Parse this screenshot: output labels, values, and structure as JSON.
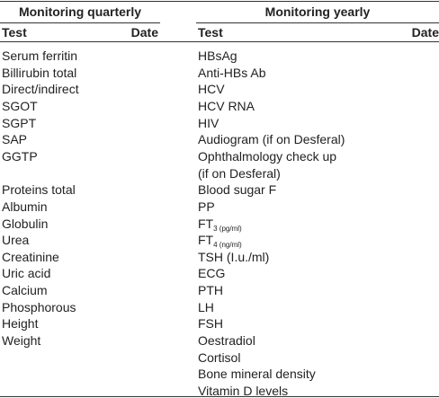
{
  "quarterly": {
    "title": "Monitoring quarterly",
    "headers": [
      "Test",
      "Date"
    ],
    "items": [
      "Serum ferritin",
      "Billirubin total",
      "Direct/indirect",
      "SGOT",
      "SGPT",
      "SAP",
      "GGTP",
      "Proteins total",
      "Albumin",
      "Globulin",
      "Urea",
      "Creatinine",
      "Uric acid",
      "Calcium",
      "Phosphorous",
      "Height",
      "Weight"
    ]
  },
  "yearly": {
    "title": "Monitoring yearly",
    "headers": [
      "Test",
      "Date"
    ],
    "items": [
      "HBsAg",
      "Anti-HBs Ab",
      "HCV",
      "HCV RNA",
      "HIV",
      "Audiogram (if on Desferal)",
      [
        "Ophthalmology check up",
        "(if on Desferal)"
      ],
      "Blood sugar F",
      "PP",
      {
        "text": "FT",
        "sub": "3 (pg/ml)"
      },
      {
        "text": "FT",
        "sub": "4 (ng/ml)"
      },
      "TSH (I.u./ml)",
      "ECG",
      "PTH",
      "LH",
      "FSH",
      "Oestradiol",
      "Cortisol",
      "Bone mineral density",
      "Vitamin D levels"
    ]
  }
}
